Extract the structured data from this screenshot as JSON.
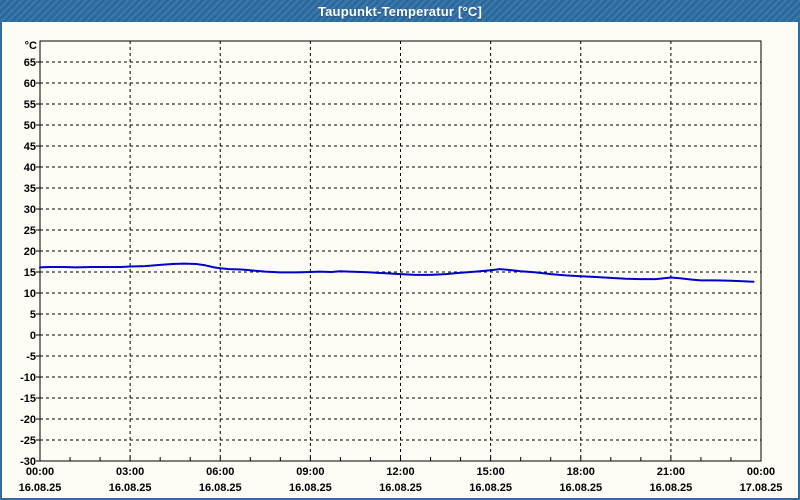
{
  "window": {
    "title": "Taupunkt-Temperatur [°C]"
  },
  "colors": {
    "titlebar_bg": "#2d6da3",
    "window_border": "#2d6da3",
    "page_bg": "#fdfdf6",
    "grid": "#000000",
    "axis": "#000000",
    "label_text": "#000000",
    "title_text": "#ffffff",
    "series_line": "#0000c8"
  },
  "chart_data": {
    "type": "line",
    "title": "Taupunkt-Temperatur [°C]",
    "y_unit_label": "°C",
    "ylim": [
      -30,
      70
    ],
    "ytick_step": 5,
    "yticks": [
      65,
      60,
      55,
      50,
      45,
      40,
      35,
      30,
      25,
      20,
      15,
      10,
      5,
      0,
      -5,
      -10,
      -15,
      -20,
      -25,
      -30
    ],
    "x_hours_range": [
      0,
      24
    ],
    "x_minor_tick_hours": 1,
    "x_major_ticks": [
      {
        "hour": 0,
        "time": "00:00",
        "date": "16.08.25"
      },
      {
        "hour": 3,
        "time": "03:00",
        "date": "16.08.25"
      },
      {
        "hour": 6,
        "time": "06:00",
        "date": "16.08.25"
      },
      {
        "hour": 9,
        "time": "09:00",
        "date": "16.08.25"
      },
      {
        "hour": 12,
        "time": "12:00",
        "date": "16.08.25"
      },
      {
        "hour": 15,
        "time": "15:00",
        "date": "16.08.25"
      },
      {
        "hour": 18,
        "time": "18:00",
        "date": "16.08.25"
      },
      {
        "hour": 21,
        "time": "21:00",
        "date": "16.08.25"
      },
      {
        "hour": 24,
        "time": "00:00",
        "date": "17.08.25"
      }
    ],
    "grid": "dashed",
    "legend": "none",
    "series": [
      {
        "name": "Taupunkt-Temperatur",
        "color": "#0000c8",
        "points": [
          [
            0.0,
            16.1
          ],
          [
            0.3,
            16.2
          ],
          [
            0.8,
            16.2
          ],
          [
            1.2,
            16.1
          ],
          [
            1.7,
            16.2
          ],
          [
            2.2,
            16.2
          ],
          [
            2.7,
            16.2
          ],
          [
            3.0,
            16.3
          ],
          [
            3.5,
            16.4
          ],
          [
            4.0,
            16.7
          ],
          [
            4.4,
            16.9
          ],
          [
            4.8,
            17.0
          ],
          [
            5.2,
            16.9
          ],
          [
            5.5,
            16.6
          ],
          [
            5.8,
            16.1
          ],
          [
            6.0,
            15.9
          ],
          [
            6.3,
            15.7
          ],
          [
            6.7,
            15.6
          ],
          [
            7.0,
            15.4
          ],
          [
            7.5,
            15.1
          ],
          [
            8.0,
            14.9
          ],
          [
            8.5,
            14.9
          ],
          [
            9.0,
            15.0
          ],
          [
            9.3,
            15.1
          ],
          [
            9.7,
            15.0
          ],
          [
            10.0,
            15.2
          ],
          [
            10.3,
            15.1
          ],
          [
            10.7,
            15.0
          ],
          [
            11.0,
            14.9
          ],
          [
            11.5,
            14.7
          ],
          [
            12.0,
            14.5
          ],
          [
            12.5,
            14.3
          ],
          [
            13.0,
            14.3
          ],
          [
            13.5,
            14.5
          ],
          [
            14.0,
            14.8
          ],
          [
            14.5,
            15.1
          ],
          [
            15.0,
            15.4
          ],
          [
            15.3,
            15.7
          ],
          [
            15.6,
            15.5
          ],
          [
            16.0,
            15.2
          ],
          [
            16.5,
            14.9
          ],
          [
            17.0,
            14.5
          ],
          [
            17.5,
            14.2
          ],
          [
            18.0,
            14.0
          ],
          [
            18.5,
            13.8
          ],
          [
            19.0,
            13.6
          ],
          [
            19.5,
            13.4
          ],
          [
            20.0,
            13.3
          ],
          [
            20.5,
            13.3
          ],
          [
            21.0,
            13.7
          ],
          [
            21.3,
            13.5
          ],
          [
            21.7,
            13.2
          ],
          [
            22.0,
            13.0
          ],
          [
            22.5,
            13.0
          ],
          [
            23.0,
            12.9
          ],
          [
            23.4,
            12.8
          ],
          [
            23.75,
            12.7
          ]
        ]
      }
    ]
  }
}
